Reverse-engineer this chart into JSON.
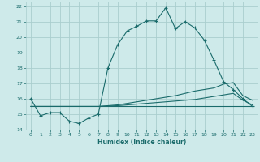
{
  "xlabel": "Humidex (Indice chaleur)",
  "xlim": [
    -0.5,
    23.5
  ],
  "ylim": [
    14,
    22.3
  ],
  "xticks": [
    0,
    1,
    2,
    3,
    4,
    5,
    6,
    7,
    8,
    9,
    10,
    11,
    12,
    13,
    14,
    15,
    16,
    17,
    18,
    19,
    20,
    21,
    22,
    23
  ],
  "yticks": [
    14,
    15,
    16,
    17,
    18,
    19,
    20,
    21,
    22
  ],
  "bg_color": "#ceeaea",
  "grid_color": "#aacece",
  "line_color": "#1a6b6b",
  "line1_x": [
    0,
    1,
    2,
    3,
    4,
    5,
    6,
    7,
    8,
    9,
    10,
    11,
    12,
    13,
    14,
    15,
    16,
    17,
    18,
    19,
    20,
    21,
    22,
    23
  ],
  "line1_y": [
    16.0,
    14.9,
    15.1,
    15.1,
    14.55,
    14.4,
    14.75,
    15.0,
    18.0,
    19.5,
    20.4,
    20.7,
    21.05,
    21.05,
    21.9,
    20.55,
    21.0,
    20.6,
    19.8,
    18.5,
    17.1,
    16.6,
    16.0,
    15.5
  ],
  "line2_x": [
    0,
    1,
    2,
    3,
    4,
    5,
    6,
    7,
    8,
    9,
    10,
    11,
    12,
    13,
    14,
    15,
    16,
    17,
    18,
    19,
    20,
    21,
    22,
    23
  ],
  "line2_y": [
    15.5,
    15.5,
    15.5,
    15.5,
    15.5,
    15.5,
    15.5,
    15.5,
    15.55,
    15.6,
    15.7,
    15.8,
    15.9,
    16.0,
    16.1,
    16.2,
    16.35,
    16.5,
    16.6,
    16.7,
    16.95,
    17.05,
    16.2,
    15.9
  ],
  "line3_x": [
    0,
    1,
    2,
    3,
    4,
    5,
    6,
    7,
    8,
    9,
    10,
    11,
    12,
    13,
    14,
    15,
    16,
    17,
    18,
    19,
    20,
    21,
    22,
    23
  ],
  "line3_y": [
    15.5,
    15.5,
    15.5,
    15.5,
    15.5,
    15.5,
    15.5,
    15.5,
    15.52,
    15.55,
    15.6,
    15.65,
    15.7,
    15.75,
    15.8,
    15.85,
    15.9,
    15.95,
    16.05,
    16.15,
    16.25,
    16.35,
    15.9,
    15.6
  ],
  "line4_x": [
    0,
    23
  ],
  "line4_y": [
    15.5,
    15.5
  ]
}
